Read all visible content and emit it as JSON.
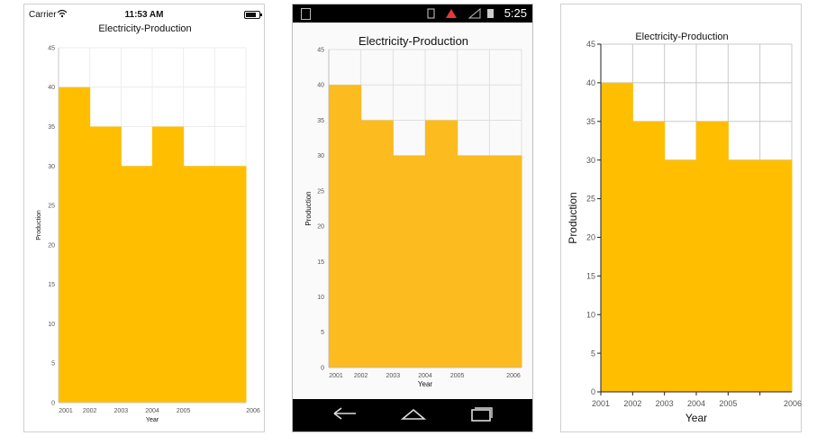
{
  "ios": {
    "status": {
      "carrier": "Carrier",
      "time": "11:53 AM"
    },
    "icons": [
      "wifi-icon",
      "battery-icon"
    ]
  },
  "android": {
    "status": {
      "time": "5:25",
      "icons": [
        "notification-icon",
        "sim-icon",
        "signal-icon",
        "battery-icon"
      ]
    },
    "nav": {
      "icons": [
        "back-icon",
        "home-icon",
        "recents-icon"
      ]
    }
  },
  "uwp": {},
  "chart_data": {
    "type": "area",
    "step": true,
    "title": "Electricity-Production",
    "xlabel": "Year",
    "ylabel": "Production",
    "categories": [
      "2001",
      "2002",
      "2003",
      "2004",
      "2005",
      "2006"
    ],
    "values": [
      40,
      35,
      30,
      35,
      30,
      30
    ],
    "ylim": [
      0,
      45
    ],
    "yticks": [
      0,
      5,
      10,
      15,
      20,
      25,
      30,
      35,
      40,
      45
    ],
    "grid": true,
    "colors": {
      "fill": "#FFBF00",
      "fill_android": "#FCBB1E"
    }
  }
}
